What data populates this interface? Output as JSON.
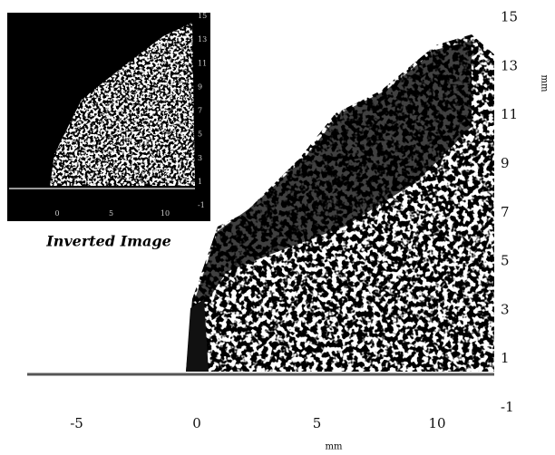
{
  "main": {
    "xticks": [
      -5,
      0,
      5,
      10
    ],
    "yticks": [
      -1,
      1,
      3,
      5,
      7,
      9,
      11,
      13,
      15
    ],
    "xlabel": "mm",
    "ylabel": "mm"
  },
  "inset": {
    "xticks": [
      0,
      5,
      10
    ],
    "yticks": [
      -1,
      1,
      3,
      5,
      7,
      9,
      11,
      13,
      15
    ],
    "caption": "Inverted Image"
  }
}
